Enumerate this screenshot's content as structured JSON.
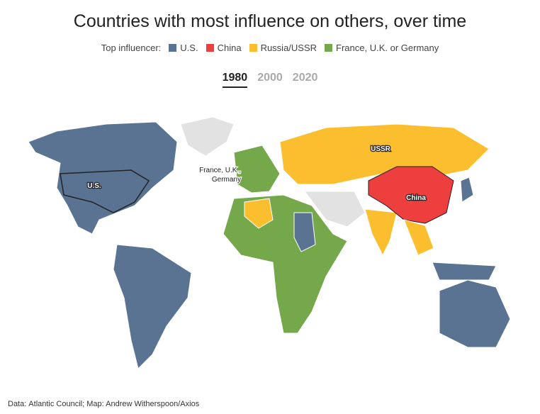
{
  "header": {
    "title": "Countries with most influence on others, over time"
  },
  "legend": {
    "label": "Top influencer:",
    "items": [
      {
        "label": "U.S.",
        "color": "#5a7393"
      },
      {
        "label": "China",
        "color": "#ee3f3f"
      },
      {
        "label": "Russia/USSR",
        "color": "#fbbe2e"
      },
      {
        "label": "France, U.K. or Germany",
        "color": "#74a84b"
      }
    ]
  },
  "tabs": {
    "items": [
      "1980",
      "2000",
      "2020"
    ],
    "selected": 0
  },
  "map_labels": {
    "us": "U.S.",
    "ussr": "USSR",
    "china": "China",
    "europe": [
      "France, U.K.,",
      "Germany"
    ]
  },
  "footer": {
    "prefix": "Data:",
    "link": "Atlantic Council",
    "suffix": "; Map: Andrew Witherspoon/Axios"
  }
}
